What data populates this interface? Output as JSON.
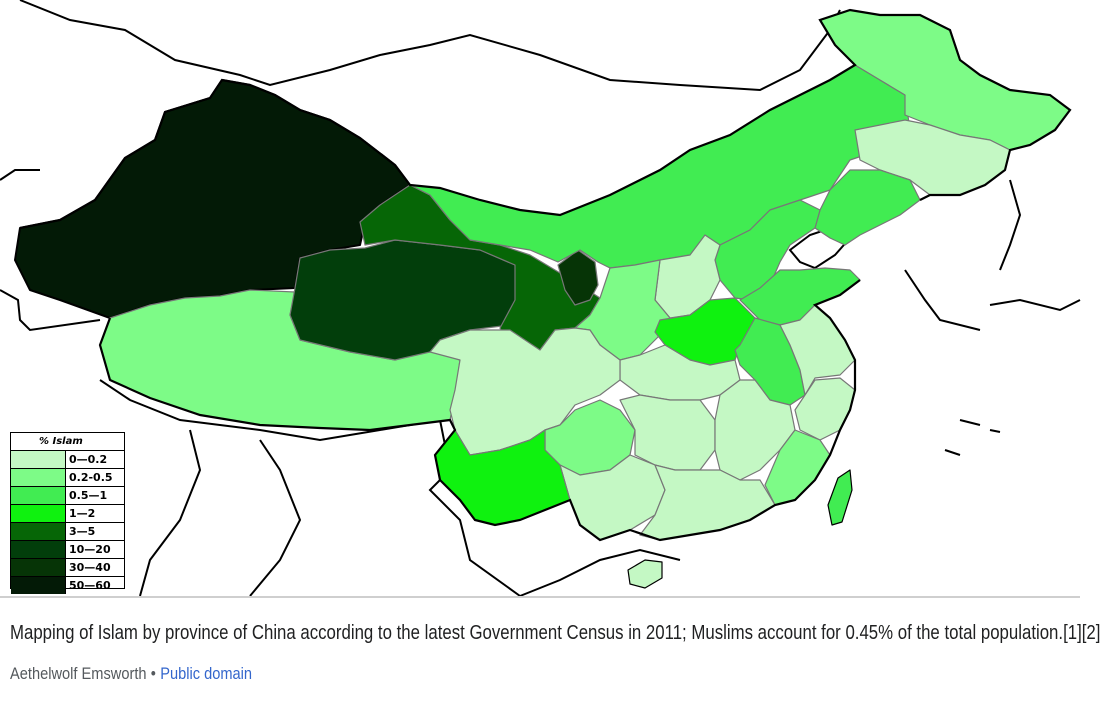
{
  "legend": {
    "title": "% Islam",
    "items": [
      {
        "label": "0—0.2",
        "color": "#c4f8c4"
      },
      {
        "label": "0.2-0.5",
        "color": "#7dfb87"
      },
      {
        "label": "0.5—1",
        "color": "#41ec52"
      },
      {
        "label": "1—2",
        "color": "#0ff20f"
      },
      {
        "label": "3—5",
        "color": "#066606"
      },
      {
        "label": "10—20",
        "color": "#023e0b"
      },
      {
        "label": "30—40",
        "color": "#063406"
      },
      {
        "label": "50—60",
        "color": "#031a06"
      }
    ]
  },
  "caption": {
    "text": "Mapping of Islam by province of China according to the latest Government Census in 2011; Muslims account for 0.45% of the total population.[1][2]",
    "author": "Aethelwolf Emsworth",
    "separator": "•",
    "license": "Public domain"
  },
  "colors": {
    "border": "#000000",
    "province_border": "#777777",
    "link": "#3366cc"
  }
}
